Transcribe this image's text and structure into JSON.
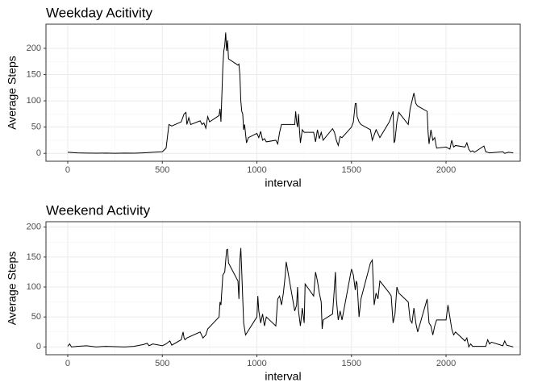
{
  "chart_data": [
    {
      "type": "line",
      "title": "Weekday Acitivity",
      "x_label": "interval",
      "y_label": "Average Steps",
      "x": [
        0,
        50,
        100,
        150,
        200,
        250,
        300,
        350,
        400,
        450,
        500,
        520,
        535,
        550,
        600,
        615,
        625,
        630,
        640,
        650,
        700,
        710,
        720,
        730,
        740,
        750,
        800,
        805,
        810,
        820,
        825,
        830,
        835,
        840,
        845,
        850,
        900,
        905,
        910,
        915,
        920,
        925,
        930,
        935,
        945,
        955,
        1000,
        1010,
        1020,
        1030,
        1040,
        1050,
        1100,
        1110,
        1120,
        1130,
        1140,
        1150,
        1200,
        1205,
        1210,
        1215,
        1220,
        1225,
        1230,
        1240,
        1250,
        1300,
        1310,
        1320,
        1330,
        1340,
        1350,
        1400,
        1410,
        1420,
        1430,
        1440,
        1450,
        1500,
        1510,
        1520,
        1525,
        1530,
        1540,
        1550,
        1600,
        1610,
        1620,
        1630,
        1640,
        1650,
        1700,
        1710,
        1720,
        1725,
        1730,
        1740,
        1750,
        1800,
        1810,
        1820,
        1830,
        1840,
        1850,
        1900,
        1905,
        1910,
        1920,
        1930,
        1940,
        1950,
        2000,
        2010,
        2020,
        2030,
        2040,
        2050,
        2100,
        2110,
        2120,
        2130,
        2140,
        2150,
        2200,
        2210,
        2220,
        2230,
        2300,
        2310,
        2330,
        2355
      ],
      "series": [
        {
          "color": "#000000",
          "values": [
            2,
            1,
            0.5,
            0.3,
            0.5,
            0.2,
            0.5,
            0.3,
            1,
            2,
            3,
            10,
            55,
            52,
            60,
            75,
            78,
            55,
            68,
            55,
            62,
            55,
            58,
            48,
            70,
            60,
            72,
            85,
            60,
            165,
            195,
            205,
            230,
            195,
            215,
            180,
            168,
            170,
            150,
            100,
            80,
            75,
            45,
            55,
            20,
            30,
            38,
            30,
            42,
            25,
            28,
            22,
            25,
            18,
            40,
            55,
            55,
            55,
            55,
            80,
            60,
            50,
            75,
            45,
            20,
            45,
            40,
            40,
            22,
            45,
            28,
            40,
            25,
            47,
            40,
            25,
            15,
            32,
            30,
            50,
            60,
            95,
            95,
            70,
            60,
            55,
            45,
            25,
            35,
            45,
            38,
            30,
            60,
            70,
            80,
            20,
            25,
            60,
            78,
            55,
            85,
            100,
            115,
            95,
            90,
            80,
            40,
            18,
            45,
            25,
            30,
            10,
            12,
            10,
            8,
            25,
            12,
            15,
            12,
            20,
            8,
            3,
            5,
            2,
            14,
            3,
            2,
            1,
            3,
            0,
            2,
            1
          ]
        }
      ],
      "xlim": [
        -115,
        2392
      ],
      "ylim": [
        -15,
        246
      ],
      "xticks": [
        0,
        500,
        1000,
        1500,
        2000
      ],
      "yticks": [
        0,
        50,
        100,
        150,
        200
      ],
      "grid": true
    },
    {
      "type": "line",
      "title": "Weekend Activity",
      "x_label": "interval",
      "y_label": "Average Steps",
      "x": [
        0,
        10,
        20,
        50,
        100,
        150,
        200,
        300,
        350,
        400,
        420,
        430,
        450,
        500,
        520,
        540,
        550,
        600,
        610,
        615,
        620,
        630,
        700,
        715,
        730,
        740,
        800,
        805,
        810,
        820,
        830,
        840,
        845,
        850,
        900,
        905,
        910,
        915,
        920,
        930,
        935,
        940,
        950,
        1000,
        1005,
        1010,
        1020,
        1030,
        1040,
        1050,
        1100,
        1110,
        1120,
        1130,
        1140,
        1150,
        1155,
        1200,
        1210,
        1215,
        1220,
        1230,
        1240,
        1250,
        1255,
        1300,
        1310,
        1320,
        1330,
        1340,
        1345,
        1350,
        1400,
        1410,
        1415,
        1420,
        1430,
        1440,
        1450,
        1500,
        1510,
        1520,
        1525,
        1530,
        1540,
        1550,
        1600,
        1610,
        1620,
        1630,
        1640,
        1650,
        1700,
        1710,
        1720,
        1730,
        1740,
        1750,
        1800,
        1810,
        1820,
        1830,
        1840,
        1850,
        1900,
        1910,
        1920,
        1930,
        1940,
        1950,
        2000,
        2010,
        2020,
        2030,
        2040,
        2050,
        2100,
        2110,
        2120,
        2130,
        2140,
        2200,
        2210,
        2220,
        2230,
        2240,
        2300,
        2310,
        2320,
        2355
      ],
      "series": [
        {
          "color": "#000000",
          "values": [
            1,
            5,
            0,
            1,
            2,
            0,
            1,
            0,
            1,
            4,
            6,
            2,
            5,
            2,
            5,
            10,
            3,
            12,
            25,
            15,
            12,
            15,
            25,
            15,
            20,
            30,
            50,
            75,
            70,
            120,
            125,
            162,
            163,
            140,
            110,
            80,
            145,
            165,
            125,
            40,
            30,
            20,
            25,
            50,
            85,
            60,
            40,
            55,
            35,
            50,
            35,
            80,
            85,
            70,
            90,
            120,
            142,
            60,
            70,
            100,
            60,
            35,
            65,
            40,
            105,
            85,
            125,
            110,
            90,
            75,
            30,
            45,
            55,
            100,
            125,
            80,
            45,
            60,
            45,
            130,
            120,
            95,
            110,
            105,
            50,
            80,
            140,
            145,
            70,
            90,
            80,
            110,
            90,
            85,
            40,
            55,
            100,
            90,
            75,
            45,
            40,
            65,
            40,
            25,
            80,
            40,
            35,
            20,
            35,
            45,
            45,
            70,
            50,
            30,
            20,
            25,
            10,
            15,
            0,
            5,
            1,
            1,
            1,
            12,
            5,
            8,
            2,
            10,
            3,
            0
          ]
        }
      ],
      "xlim": [
        -115,
        2392
      ],
      "ylim": [
        -13,
        209
      ],
      "xticks": [
        0,
        500,
        1000,
        1500,
        2000
      ],
      "yticks": [
        0,
        50,
        100,
        150,
        200
      ],
      "grid": true
    }
  ]
}
